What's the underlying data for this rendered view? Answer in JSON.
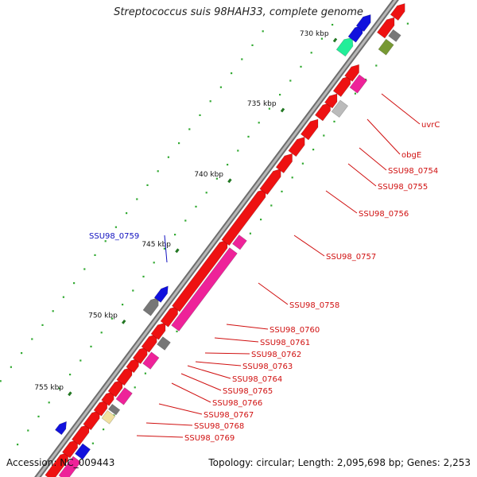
{
  "title": "Streptococcus suis 98HAH33, complete genome",
  "footer": {
    "accession": "Accession: NC_009443",
    "topology": "Topology: circular; Length: 2,095,698 bp; Genes: 2,253"
  },
  "scale_labels": [
    "730 kbp",
    "735 kbp",
    "740 kbp",
    "745 kbp",
    "750 kbp",
    "755 kbp"
  ],
  "gene_labels": [
    {
      "text": "uvrC",
      "color": "#d01010"
    },
    {
      "text": "obgE",
      "color": "#d01010"
    },
    {
      "text": "SSU98_0754",
      "color": "#d01010"
    },
    {
      "text": "SSU98_0755",
      "color": "#d01010"
    },
    {
      "text": "SSU98_0756",
      "color": "#d01010"
    },
    {
      "text": "SSU98_0757",
      "color": "#d01010"
    },
    {
      "text": "SSU98_0758",
      "color": "#d01010"
    },
    {
      "text": "SSU98_0759",
      "color": "#1010c0"
    },
    {
      "text": "SSU98_0760",
      "color": "#d01010"
    },
    {
      "text": "SSU98_0761",
      "color": "#d01010"
    },
    {
      "text": "SSU98_0762",
      "color": "#d01010"
    },
    {
      "text": "SSU98_0763",
      "color": "#d01010"
    },
    {
      "text": "SSU98_0764",
      "color": "#d01010"
    },
    {
      "text": "SSU98_0765",
      "color": "#d01010"
    },
    {
      "text": "SSU98_0766",
      "color": "#d01010"
    },
    {
      "text": "SSU98_0767",
      "color": "#d01010"
    },
    {
      "text": "SSU98_0768",
      "color": "#d01010"
    },
    {
      "text": "SSU98_0769",
      "color": "#d01010"
    }
  ],
  "colors": {
    "backbone": "#8a8a8a",
    "gene_forward": "#ee1111",
    "cog_pink": "#ee2299",
    "cog_gray": "#bbbbbb",
    "cog_darkgray": "#777777",
    "cog_blue": "#1111dd",
    "cog_green": "#22ee99",
    "cog_olive": "#779933",
    "cog_yellow": "#f0e0a0",
    "tick_major": "#227722",
    "tick_minor": "#33aa33"
  }
}
